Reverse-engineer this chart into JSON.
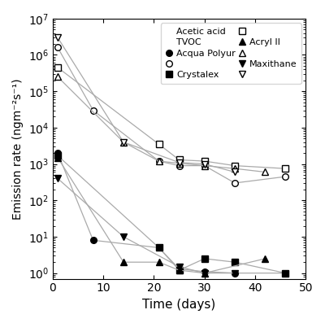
{
  "title": "",
  "xlabel": "Time (days)",
  "ylabel": "Emission rate (ngm⁻²s⁻¹)",
  "xlim": [
    0,
    50
  ],
  "ylim": [
    0.7,
    10000000.0
  ],
  "legend_col1": "Acetic acid",
  "legend_col2": "TVOC",
  "brands": [
    "Acqua Polyur",
    "Crystalex",
    "Acryl II",
    "Maxithane"
  ],
  "acetic_acid": {
    "Acqua Polyur": {
      "x": [
        1,
        8,
        21,
        25,
        30,
        36,
        46
      ],
      "y": [
        2000,
        8,
        5,
        1.3,
        1.1,
        1.0,
        1.0
      ]
    },
    "Crystalex": {
      "x": [
        1,
        21,
        25,
        30,
        36,
        46
      ],
      "y": [
        1700,
        5,
        1.2,
        2.5,
        2.0,
        1.0
      ]
    },
    "Acryl II": {
      "x": [
        1,
        14,
        21,
        25,
        30,
        42
      ],
      "y": [
        1500,
        2,
        2,
        1.2,
        1.0,
        2.5
      ]
    },
    "Maxithane": {
      "x": [
        1,
        14,
        25,
        30,
        36
      ],
      "y": [
        400,
        10,
        1.5,
        1.0,
        1.0
      ]
    }
  },
  "tvoc": {
    "Acqua Polyur": {
      "x": [
        1,
        8,
        21,
        25,
        30,
        36,
        46
      ],
      "y": [
        1600000,
        30000,
        1200,
        900,
        900,
        300,
        450
      ]
    },
    "Crystalex": {
      "x": [
        1,
        21,
        25,
        30,
        36,
        46
      ],
      "y": [
        450000,
        3500,
        1300,
        1200,
        900,
        750
      ]
    },
    "Acryl II": {
      "x": [
        1,
        14,
        21,
        25,
        30,
        36,
        42
      ],
      "y": [
        250000,
        4000,
        1200,
        1050,
        900,
        750,
        600
      ]
    },
    "Maxithane": {
      "x": [
        1,
        14,
        25,
        30,
        36
      ],
      "y": [
        3000000,
        4000,
        1100,
        1000,
        600
      ]
    }
  },
  "markers_filled": [
    "o",
    "s",
    "^",
    "v"
  ],
  "markers_open": [
    "o",
    "s",
    "^",
    "v"
  ],
  "line_color": "#aaaaaa"
}
